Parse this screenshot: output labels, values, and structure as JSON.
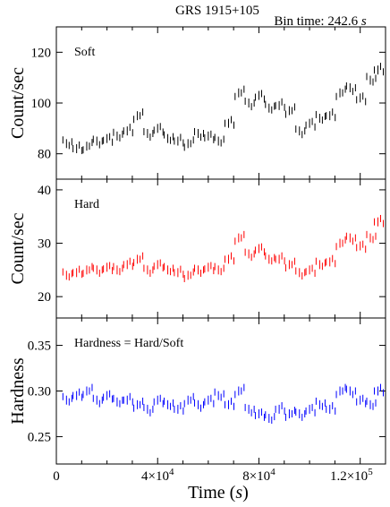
{
  "figure": {
    "title": "GRS 1915+105",
    "bin_time_label": "Bin time: 242.6",
    "bin_time_unit": "s",
    "x_axis_label_prefix": "Time (",
    "x_axis_label_unit": "s",
    "x_axis_label_suffix": ")"
  },
  "chart_data": [
    {
      "type": "scatter",
      "panel": "Soft",
      "label": "Soft",
      "ylabel": "Count/sec",
      "color": "#000000",
      "xlim": [
        0,
        130000
      ],
      "ylim": [
        70,
        130
      ],
      "yticks": [
        80,
        100,
        120
      ],
      "grid": false,
      "x": [
        4000,
        8000,
        12000,
        16000,
        20000,
        24000,
        28000,
        32000,
        36000,
        40000,
        44000,
        48000,
        52000,
        56000,
        60000,
        64000,
        68000,
        72000,
        76000,
        80000,
        84000,
        88000,
        92000,
        96000,
        100000,
        104000,
        108000,
        112000,
        116000,
        120000,
        124000,
        127000
      ],
      "values": [
        84,
        82,
        83,
        85,
        86,
        87,
        89,
        95,
        88,
        90,
        86,
        85,
        84,
        88,
        87,
        85,
        92,
        104,
        100,
        103,
        98,
        99,
        97,
        89,
        92,
        94,
        95,
        104,
        106,
        102,
        109,
        113
      ]
    },
    {
      "type": "scatter",
      "panel": "Hard",
      "label": "Hard",
      "ylabel": "Count/sec",
      "color": "#ff0000",
      "xlim": [
        0,
        130000
      ],
      "ylim": [
        16,
        42
      ],
      "yticks": [
        20,
        30,
        40
      ],
      "grid": false,
      "x": [
        4000,
        8000,
        12000,
        16000,
        20000,
        24000,
        28000,
        32000,
        36000,
        40000,
        44000,
        48000,
        52000,
        56000,
        60000,
        64000,
        68000,
        72000,
        76000,
        80000,
        84000,
        88000,
        92000,
        96000,
        100000,
        104000,
        108000,
        112000,
        116000,
        120000,
        124000,
        127000
      ],
      "values": [
        24,
        24.5,
        25,
        25,
        25.5,
        25,
        26,
        27,
        25,
        26,
        25,
        24.5,
        24,
        25,
        25.5,
        25,
        27,
        31,
        28,
        29,
        27,
        27,
        26,
        24.5,
        25,
        26,
        26.5,
        30,
        31,
        29.5,
        31,
        34
      ]
    },
    {
      "type": "scatter",
      "panel": "Hardness",
      "label": "Hardness = Hard/Soft",
      "ylabel": "Hardness",
      "color": "#0000ff",
      "xlim": [
        0,
        130000
      ],
      "ylim": [
        0.22,
        0.38
      ],
      "yticks": [
        0.25,
        0.3,
        0.35
      ],
      "xticks": [
        {
          "value": 0,
          "mantissa": "0",
          "exp": ""
        },
        {
          "value": 40000,
          "mantissa": "4×10",
          "exp": "4"
        },
        {
          "value": 80000,
          "mantissa": "8×10",
          "exp": "4"
        },
        {
          "value": 120000,
          "mantissa": "1.2×10",
          "exp": "5"
        }
      ],
      "grid": false,
      "x": [
        4000,
        8000,
        12000,
        16000,
        20000,
        24000,
        28000,
        32000,
        36000,
        40000,
        44000,
        48000,
        52000,
        56000,
        60000,
        64000,
        68000,
        72000,
        76000,
        80000,
        84000,
        88000,
        92000,
        96000,
        100000,
        104000,
        108000,
        112000,
        116000,
        120000,
        124000,
        127000
      ],
      "values": [
        0.29,
        0.295,
        0.3,
        0.29,
        0.295,
        0.288,
        0.29,
        0.285,
        0.28,
        0.29,
        0.285,
        0.28,
        0.29,
        0.285,
        0.29,
        0.295,
        0.285,
        0.3,
        0.28,
        0.275,
        0.27,
        0.28,
        0.275,
        0.275,
        0.28,
        0.285,
        0.28,
        0.3,
        0.3,
        0.29,
        0.285,
        0.3
      ]
    }
  ]
}
